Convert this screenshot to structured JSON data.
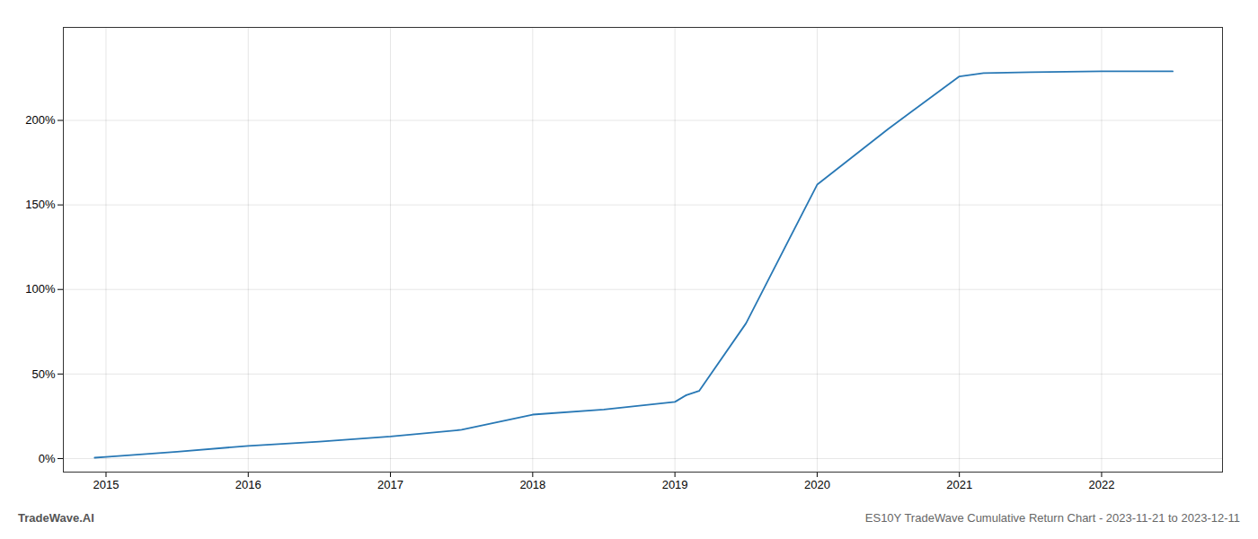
{
  "chart_data": {
    "type": "line",
    "title": "ES10Y TradeWave Cumulative Return Chart - 2023-11-21 to 2023-12-11",
    "annotations": [
      "TradeWave.AI"
    ],
    "x": [
      2014.92,
      2015.0,
      2015.5,
      2016.0,
      2016.5,
      2017.0,
      2017.5,
      2018.0,
      2018.5,
      2019.0,
      2019.08,
      2019.17,
      2019.5,
      2020.0,
      2020.5,
      2021.0,
      2021.17,
      2021.5,
      2022.0,
      2022.5
    ],
    "values": [
      0.5,
      1.0,
      4.0,
      7.5,
      10.0,
      13.0,
      17.0,
      26.0,
      29.0,
      33.5,
      37.5,
      40.0,
      80.0,
      162.0,
      195.0,
      226.0,
      228.0,
      228.5,
      229.0,
      229.0
    ],
    "color": "#2878b5",
    "xlim": [
      2014.7,
      2022.85
    ],
    "ylim": [
      -8,
      255
    ],
    "xticks": [
      2015,
      2016,
      2017,
      2018,
      2019,
      2020,
      2021,
      2022
    ],
    "yticks": [
      {
        "value": 0,
        "label": "0%"
      },
      {
        "value": 50,
        "label": "50%"
      },
      {
        "value": 100,
        "label": "100%"
      },
      {
        "value": 150,
        "label": "150%"
      },
      {
        "value": 200,
        "label": "200%"
      }
    ],
    "grid": true
  }
}
